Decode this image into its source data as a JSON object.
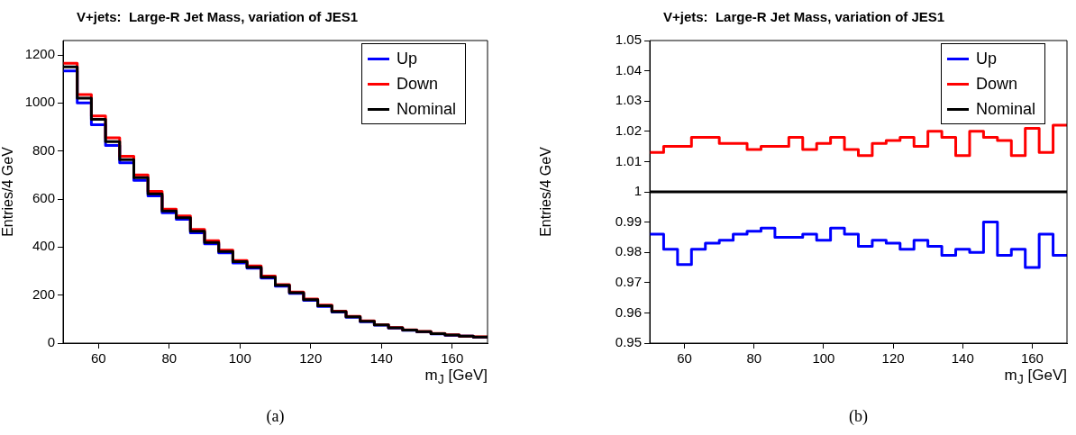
{
  "chart_data": [
    {
      "type": "histogram",
      "title": "V+jets:  Large-R Jet Mass, variation of JES1",
      "xlabel": "m$_{J}$ [GeV]",
      "ylabel": "Entries/4 GeV",
      "annotations": [
        "(a)"
      ],
      "bins": [
        50,
        54,
        58,
        62,
        66,
        70,
        74,
        78,
        82,
        86,
        90,
        94,
        98,
        102,
        106,
        110,
        114,
        118,
        122,
        126,
        130,
        134,
        138,
        142,
        146,
        150,
        154,
        158,
        162,
        166,
        170
      ],
      "series": [
        {
          "name": "Up",
          "color": "#0000ff",
          "values": [
            1133,
            1000,
            909,
            823,
            751,
            678,
            613,
            543,
            516,
            459,
            413,
            376,
            334,
            312,
            271,
            237,
            207,
            178,
            153,
            129,
            108,
            89,
            75,
            63,
            53,
            47,
            38,
            33,
            29,
            24
          ]
        },
        {
          "name": "Down",
          "color": "#ff0000",
          "values": [
            1165,
            1035,
            946,
            855,
            778,
            700,
            632,
            558,
            530,
            473,
            427,
            387,
            344,
            322,
            279,
            244,
            213,
            184,
            158,
            133,
            112,
            93,
            77,
            65,
            55,
            49,
            40,
            35,
            29,
            26
          ]
        },
        {
          "name": "Nominal",
          "color": "#000000",
          "values": [
            1150,
            1020,
            932,
            839,
            764,
            689,
            622,
            550,
            522,
            466,
            419,
            382,
            339,
            316,
            275,
            241,
            210,
            181,
            156,
            131,
            110,
            91,
            76,
            64,
            54,
            48,
            39,
            34,
            29,
            25
          ]
        }
      ],
      "xlim": [
        50,
        170
      ],
      "xticks": [
        60,
        80,
        100,
        120,
        140,
        160
      ],
      "ylim": [
        0,
        1260
      ],
      "yticks": [
        0,
        200,
        400,
        600,
        800,
        1000,
        1200
      ],
      "legend": "top right",
      "marker": "none"
    },
    {
      "type": "histogram",
      "title": "V+jets:  Large-R Jet Mass, variation of JES1",
      "xlabel": "m$_{J}$ [GeV]",
      "ylabel": "Entries/4 GeV",
      "annotations": [
        "(b)"
      ],
      "bins": [
        50,
        54,
        58,
        62,
        66,
        70,
        74,
        78,
        82,
        86,
        90,
        94,
        98,
        102,
        106,
        110,
        114,
        118,
        122,
        126,
        130,
        134,
        138,
        142,
        146,
        150,
        154,
        158,
        162,
        166,
        170
      ],
      "series": [
        {
          "name": "Up",
          "color": "#0000ff",
          "values": [
            0.986,
            0.981,
            0.976,
            0.981,
            0.983,
            0.984,
            0.986,
            0.987,
            0.988,
            0.985,
            0.985,
            0.986,
            0.984,
            0.988,
            0.986,
            0.982,
            0.984,
            0.983,
            0.981,
            0.984,
            0.982,
            0.979,
            0.981,
            0.98,
            0.99,
            0.979,
            0.981,
            0.975,
            0.986,
            0.979
          ]
        },
        {
          "name": "Down",
          "color": "#ff0000",
          "values": [
            1.013,
            1.015,
            1.015,
            1.018,
            1.018,
            1.016,
            1.016,
            1.014,
            1.015,
            1.015,
            1.018,
            1.014,
            1.016,
            1.018,
            1.014,
            1.012,
            1.016,
            1.017,
            1.018,
            1.015,
            1.02,
            1.018,
            1.012,
            1.02,
            1.018,
            1.017,
            1.012,
            1.021,
            1.013,
            1.022
          ]
        },
        {
          "name": "Nominal",
          "color": "#000000",
          "values": [
            1,
            1,
            1,
            1,
            1,
            1,
            1,
            1,
            1,
            1,
            1,
            1,
            1,
            1,
            1,
            1,
            1,
            1,
            1,
            1,
            1,
            1,
            1,
            1,
            1,
            1,
            1,
            1,
            1,
            1
          ]
        }
      ],
      "xlim": [
        50,
        170
      ],
      "xticks": [
        60,
        80,
        100,
        120,
        140,
        160
      ],
      "ylim": [
        0.95,
        1.05
      ],
      "yticks": [
        0.95,
        0.96,
        0.97,
        0.98,
        0.99,
        1,
        1.01,
        1.02,
        1.03,
        1.04,
        1.05
      ],
      "legend": "top right",
      "marker": "none"
    }
  ]
}
